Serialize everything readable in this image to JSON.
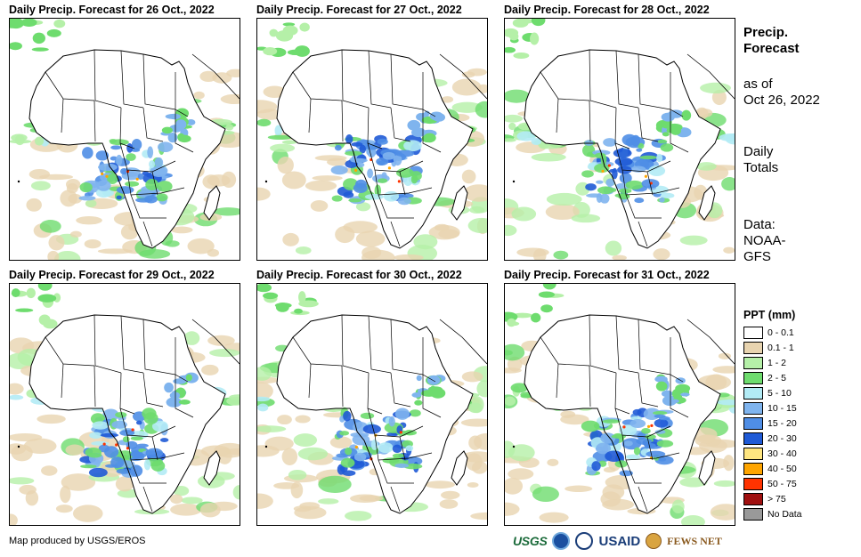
{
  "panels": [
    {
      "title": "Daily Precip. Forecast for 26 Oct., 2022"
    },
    {
      "title": "Daily Precip. Forecast for 27 Oct., 2022"
    },
    {
      "title": "Daily Precip. Forecast for 28 Oct., 2022"
    },
    {
      "title": "Daily Precip. Forecast for 29 Oct., 2022"
    },
    {
      "title": "Daily Precip. Forecast for 30 Oct., 2022"
    },
    {
      "title": "Daily Precip. Forecast for 31 Oct., 2022"
    }
  ],
  "sidebar": {
    "title_line1": "Precip.",
    "title_line2": "Forecast",
    "asof_line1": "as of",
    "asof_line2": "Oct 26, 2022",
    "totals_line1": "Daily",
    "totals_line2": "Totals",
    "data_line1": "Data:",
    "data_line2": "NOAA-",
    "data_line3": "GFS"
  },
  "legend": {
    "title": "PPT (mm)",
    "items": [
      {
        "label": "0 - 0.1",
        "color": "#ffffff"
      },
      {
        "label": "0.1 - 1",
        "color": "#e8d4b0"
      },
      {
        "label": "1 - 2",
        "color": "#b5f0a8"
      },
      {
        "label": "2 - 5",
        "color": "#6edc6e"
      },
      {
        "label": "5 - 10",
        "color": "#b2ebf5"
      },
      {
        "label": "10 - 15",
        "color": "#7fb4ee"
      },
      {
        "label": "15 - 20",
        "color": "#4f8ee6"
      },
      {
        "label": "20 - 30",
        "color": "#1f5ad6"
      },
      {
        "label": "30 - 40",
        "color": "#ffe680"
      },
      {
        "label": "40 - 50",
        "color": "#ffa500"
      },
      {
        "label": "50 - 75",
        "color": "#ff3300"
      },
      {
        "label": "> 75",
        "color": "#a01010"
      },
      {
        "label": "No Data",
        "color": "#999999"
      }
    ]
  },
  "footer": {
    "credit": "Map produced by USGS/EROS",
    "logo_usgs": "USGS",
    "logo_usaid": "USAID",
    "logo_fews": "FEWS NET"
  }
}
